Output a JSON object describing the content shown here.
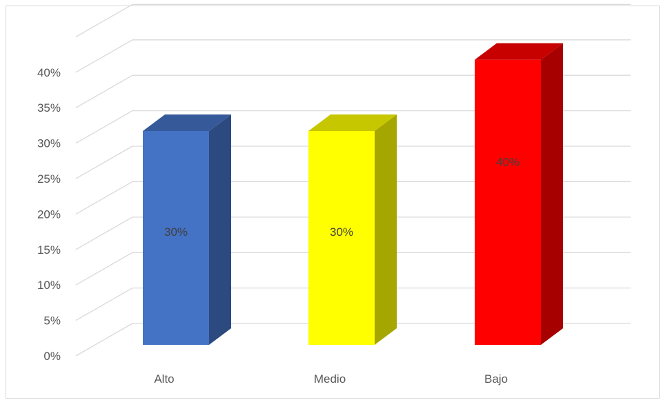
{
  "chart_data": {
    "type": "bar",
    "style": "3d-column",
    "categories": [
      "Alto",
      "Medio",
      "Bajo"
    ],
    "values": [
      30,
      30,
      40
    ],
    "data_labels": [
      "30%",
      "30%",
      "40%"
    ],
    "ylim": [
      0,
      40
    ],
    "y_ticks": [
      "0%",
      "5%",
      "10%",
      "15%",
      "20%",
      "25%",
      "30%",
      "35%",
      "40%"
    ],
    "y_tick_values": [
      0,
      5,
      10,
      15,
      20,
      25,
      30,
      35,
      40
    ],
    "grid": true,
    "legend": "none",
    "colors": [
      "#4472C4",
      "#FFFF00",
      "#FF0000"
    ]
  }
}
